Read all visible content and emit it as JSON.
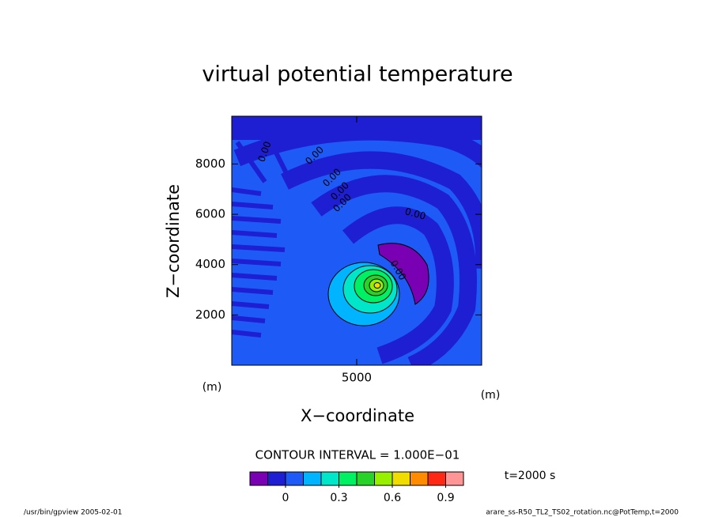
{
  "chart_data": {
    "type": "contour",
    "title": "virtual potential temperature",
    "x_label": "X−coordinate",
    "y_label": "Z−coordinate",
    "x_unit": "(m)",
    "y_unit": "(m)",
    "xlim": [
      0,
      10000
    ],
    "ylim": [
      0,
      9900
    ],
    "xticks": [
      5000
    ],
    "yticks": [
      2000,
      4000,
      6000,
      8000
    ],
    "contour_labels": [
      "0.00",
      "0.00",
      "0.00",
      "0.00",
      "0.00",
      "0.00",
      "0.00"
    ],
    "contour_interval": "CONTOUR INTERVAL = 1.000E−01",
    "time": "t=2000 s",
    "colorbar": {
      "levels": [
        -0.2,
        -0.1,
        0,
        0.1,
        0.2,
        0.3,
        0.4,
        0.5,
        0.6,
        0.7,
        0.8,
        0.9,
        1.0
      ],
      "colors": [
        "#7a00b4",
        "#1e1ed2",
        "#1e5af5",
        "#00b4ff",
        "#00e6c8",
        "#00f064",
        "#28d228",
        "#96f000",
        "#f0dc00",
        "#ff8c00",
        "#ff2814",
        "#ff9696"
      ],
      "ticks": [
        0,
        0.3,
        0.6,
        0.9
      ]
    },
    "footer_left": "/usr/bin/gpview  2005-02-01",
    "footer_right": "arare_ss-R50_TL2_TS02_rotation.nc@PotTemp,t=2000"
  }
}
